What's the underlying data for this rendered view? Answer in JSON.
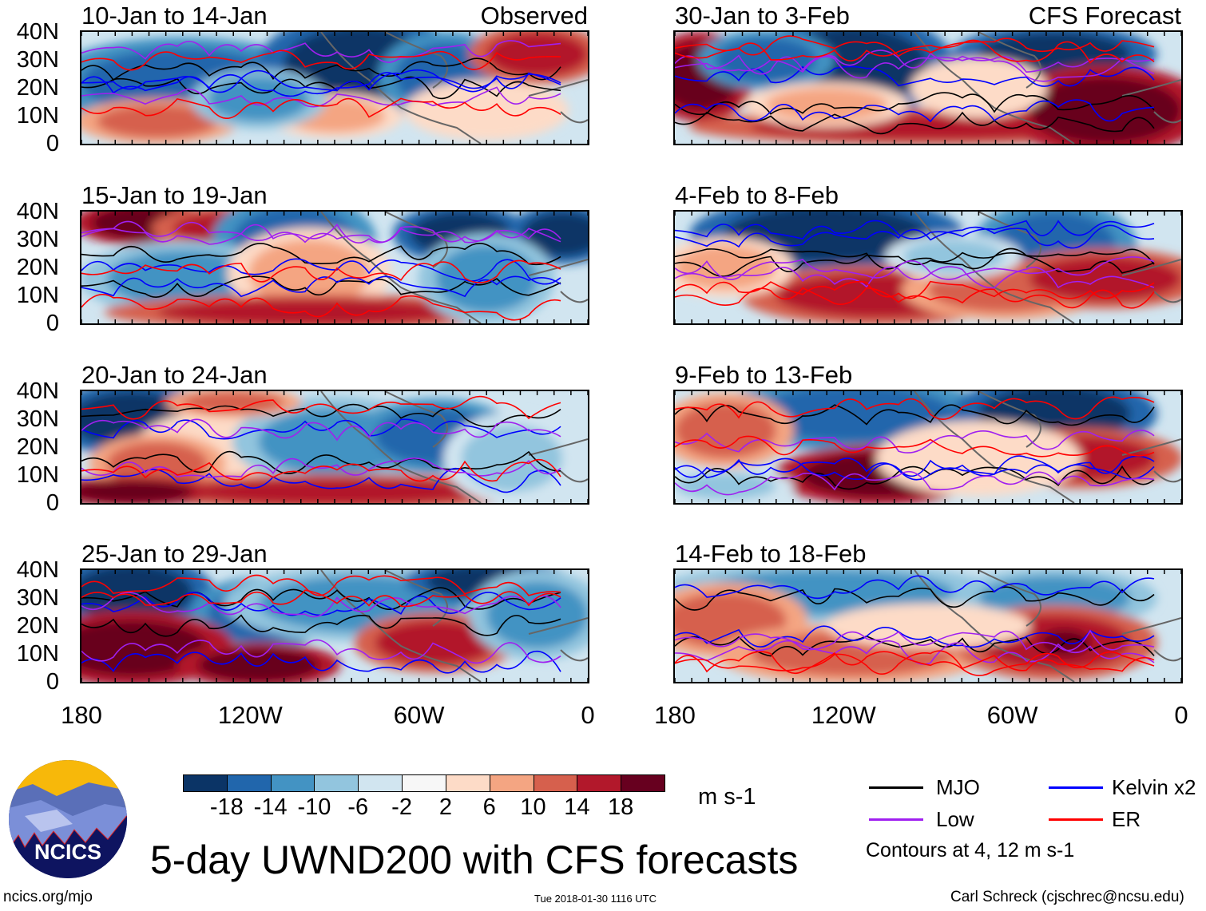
{
  "panels_left": [
    {
      "title": "10-Jan to 14-Jan",
      "tag": "Observed"
    },
    {
      "title": "15-Jan to 19-Jan",
      "tag": ""
    },
    {
      "title": "20-Jan to 24-Jan",
      "tag": ""
    },
    {
      "title": "25-Jan to 29-Jan",
      "tag": ""
    }
  ],
  "panels_right": [
    {
      "title": "30-Jan to 3-Feb",
      "tag": "CFS Forecast"
    },
    {
      "title": "4-Feb to 8-Feb",
      "tag": ""
    },
    {
      "title": "9-Feb to 13-Feb",
      "tag": ""
    },
    {
      "title": "14-Feb to 18-Feb",
      "tag": ""
    }
  ],
  "lat_ticks": [
    "40N",
    "30N",
    "20N",
    "10N",
    "0"
  ],
  "lon_ticks": [
    "180",
    "120W",
    "60W",
    "0"
  ],
  "colorbar": {
    "colors": [
      "#0b3466",
      "#2166ac",
      "#4393c3",
      "#92c5de",
      "#d1e5f0",
      "#f7f7f7",
      "#fddbc7",
      "#f4a582",
      "#d6604d",
      "#b2182b",
      "#67001f"
    ],
    "labels": [
      "-18",
      "-14",
      "-10",
      "-6",
      "-2",
      "2",
      "6",
      "10",
      "14",
      "18"
    ],
    "units": "m s-1"
  },
  "legend": {
    "items": [
      {
        "label": "MJO",
        "color": "#000000"
      },
      {
        "label": "Kelvin x2",
        "color": "#0000ff"
      },
      {
        "label": "Low",
        "color": "#a020f0"
      },
      {
        "label": "ER",
        "color": "#ff0000"
      }
    ],
    "note": "Contours at 4, 12 m s-1"
  },
  "chart_data": {
    "type": "heatmap",
    "title": "5-day UWND200 with CFS forecasts",
    "variable": "200-hPa zonal wind",
    "units": "m s-1",
    "lat_range": [
      "0",
      "40N"
    ],
    "lon_range": [
      "180",
      "0"
    ],
    "levels": [
      -18,
      -14,
      -10,
      -6,
      -2,
      2,
      6,
      10,
      14,
      18
    ],
    "contour_levels": [
      4,
      12
    ]
  },
  "logo": {
    "text": "NCICS"
  },
  "footer": {
    "left": "ncics.org/mjo",
    "center": "Tue 2018-01-30 1116 UTC",
    "right": "Carl Schreck (cjschrec@ncsu.edu)"
  }
}
